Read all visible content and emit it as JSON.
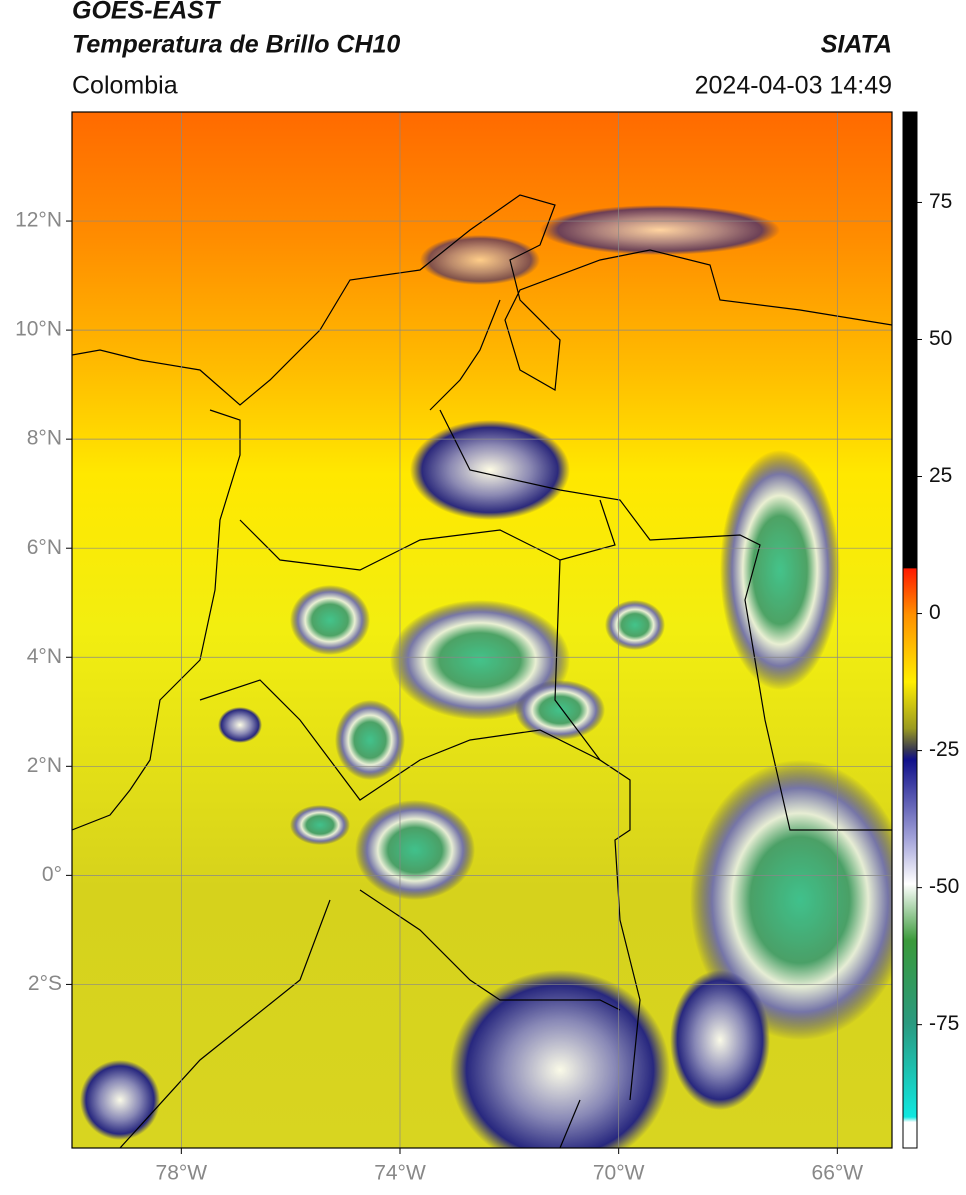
{
  "header": {
    "title": "GOES-EAST",
    "subtitle": "Temperatura de Brillo CH10",
    "source": "SIATA",
    "region": "Colombia",
    "datetime": "2024-04-03 14:49"
  },
  "map": {
    "xlim": [
      -80,
      -65
    ],
    "ylim": [
      -5,
      14
    ],
    "xticks": [
      {
        "value": -78,
        "label": "78°W"
      },
      {
        "value": -74,
        "label": "74°W"
      },
      {
        "value": -70,
        "label": "70°W"
      },
      {
        "value": -66,
        "label": "66°W"
      }
    ],
    "yticks": [
      {
        "value": 12,
        "label": "12°N"
      },
      {
        "value": 10,
        "label": "10°N"
      },
      {
        "value": 8,
        "label": "8°N"
      },
      {
        "value": 6,
        "label": "6°N"
      },
      {
        "value": 4,
        "label": "4°N"
      },
      {
        "value": 2,
        "label": "2°N"
      },
      {
        "value": 0,
        "label": "0°"
      },
      {
        "value": -2,
        "label": "2°S"
      }
    ],
    "grid": true
  },
  "colorbar": {
    "lim": [
      -97.5,
      91.5
    ],
    "ticks": [
      75,
      50,
      25,
      0,
      -25,
      -50,
      -75
    ]
  }
}
